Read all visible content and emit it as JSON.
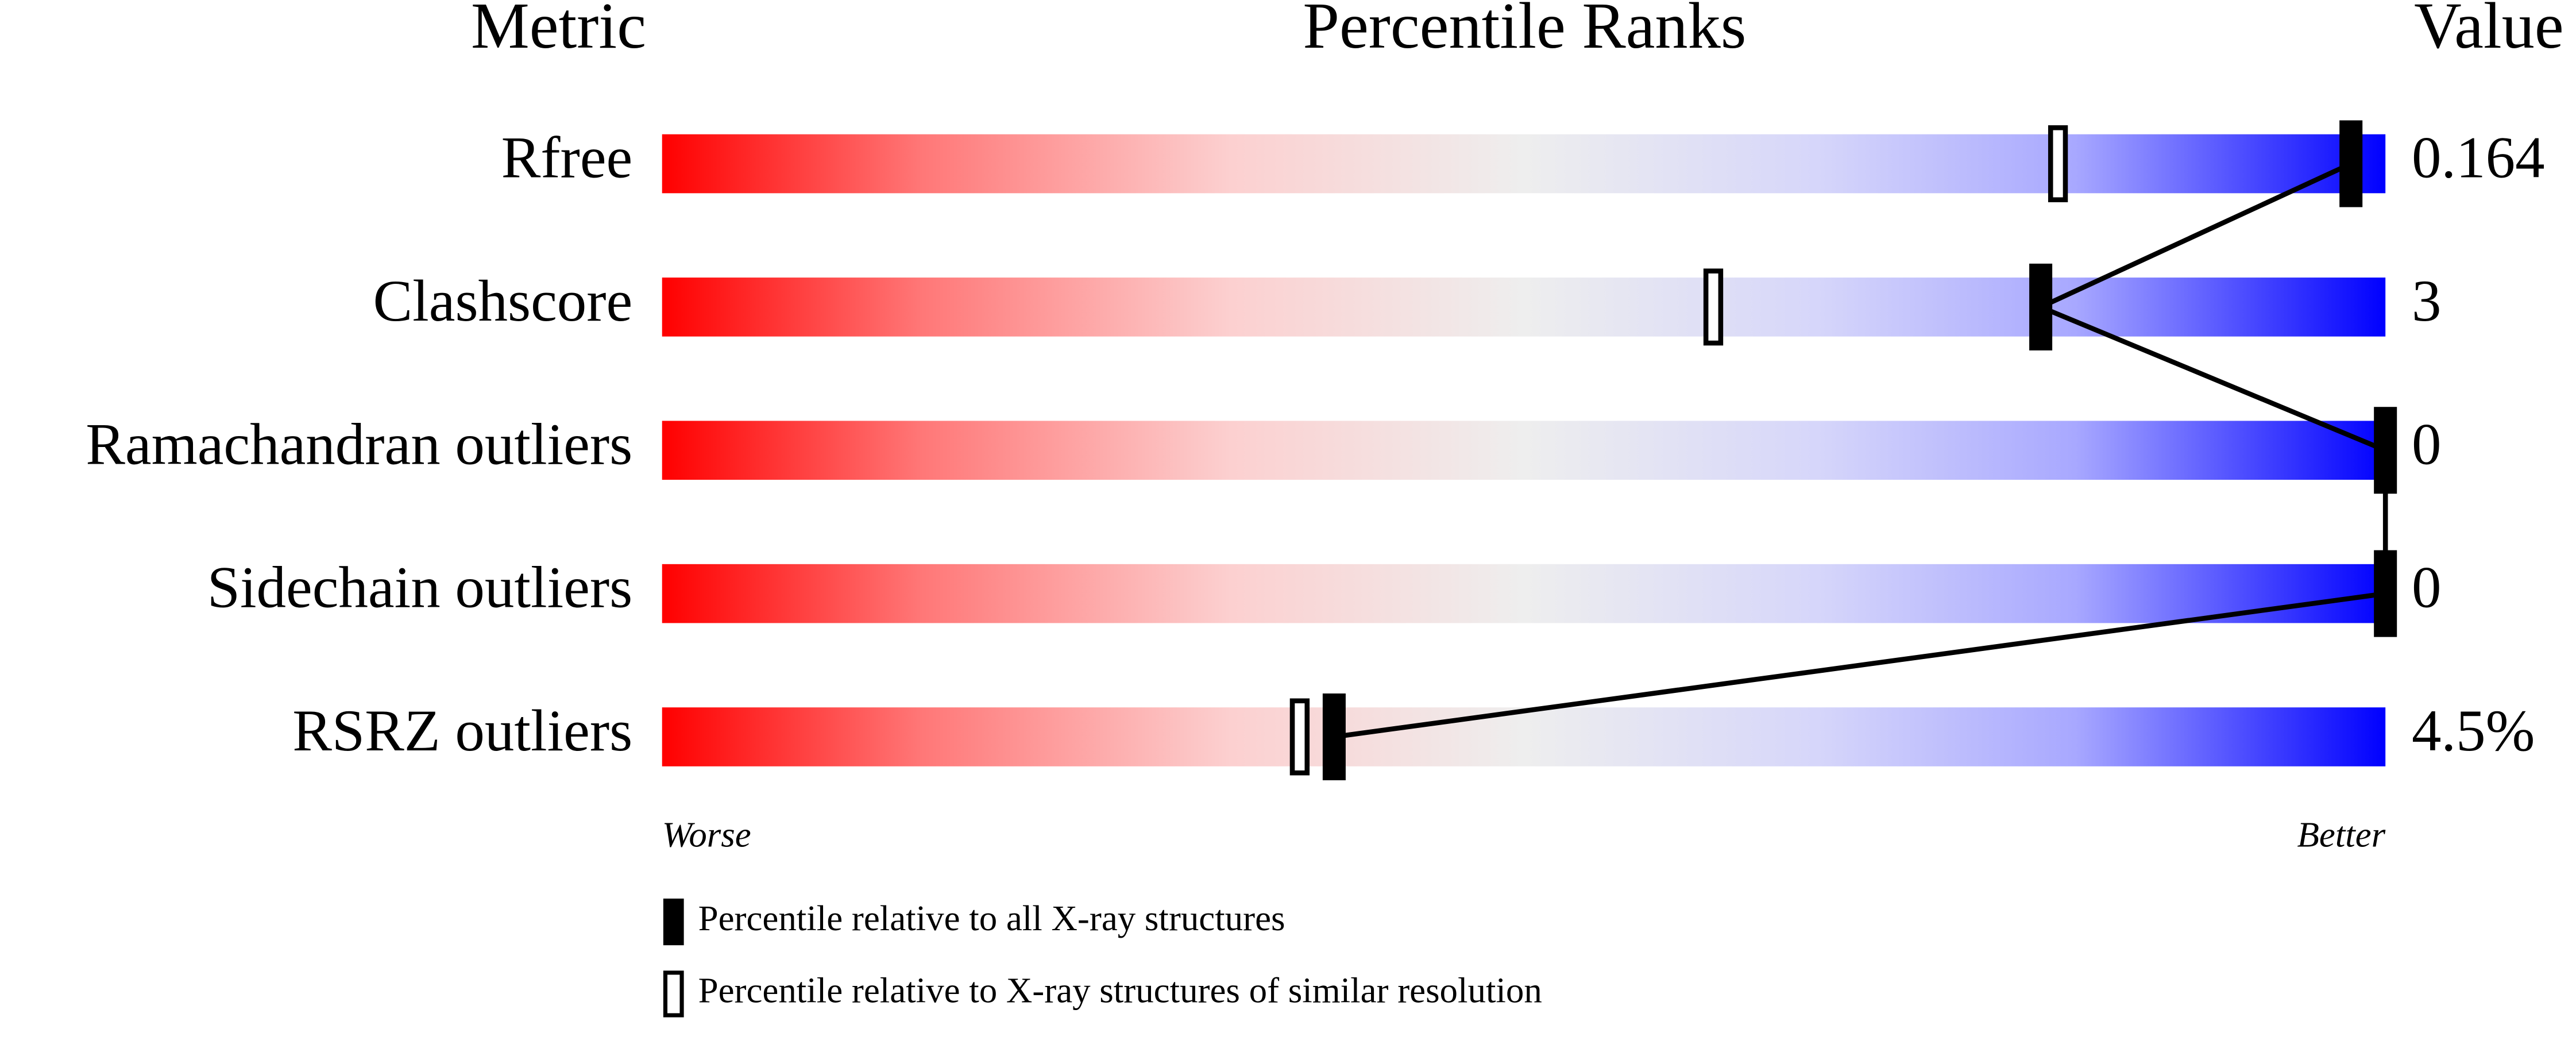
{
  "chart_data": {
    "type": "percentile-slider",
    "headers": [
      "Metric",
      "Percentile Ranks",
      "Value"
    ],
    "categories": [
      "Rfree",
      "Clashscore",
      "Ramachandran outliers",
      "Sidechain outliers",
      "RSRZ outliers"
    ],
    "series": [
      {
        "name": "Percentile relative to all X-ray structures",
        "color": "#000000",
        "values": [
          98,
          80,
          100,
          100,
          39
        ]
      },
      {
        "name": "Percentile relative to X-ray structures of similar resolution",
        "color": "#ffffff",
        "values": [
          81,
          61,
          100,
          100,
          37
        ]
      }
    ],
    "value_column": [
      "0.164",
      "3",
      "0",
      "0",
      "4.5%"
    ],
    "xlim": [
      0,
      100
    ],
    "axis_labels": [
      "Worse",
      "Better"
    ]
  }
}
